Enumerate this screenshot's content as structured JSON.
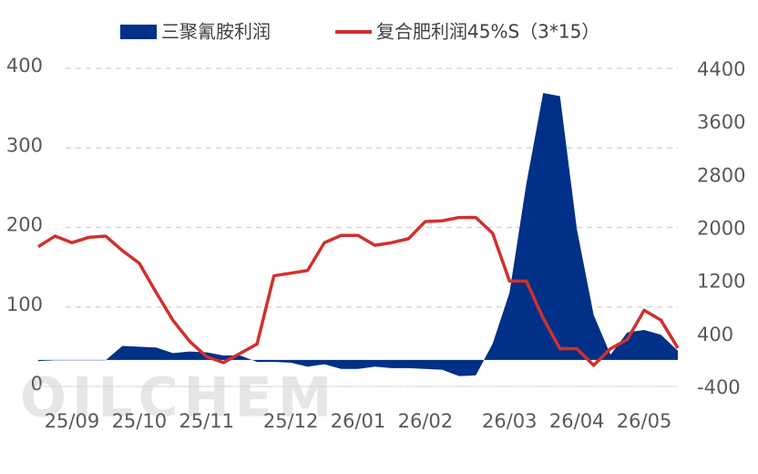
{
  "chart_data": {
    "type": "area-line",
    "watermark": "OILCHEM",
    "categories": [
      null,
      null,
      "25/09",
      null,
      null,
      null,
      "25/10",
      null,
      null,
      null,
      "25/11",
      null,
      null,
      null,
      null,
      "25/12",
      null,
      null,
      null,
      "26/01",
      null,
      null,
      null,
      "26/02",
      null,
      null,
      null,
      null,
      "26/03",
      null,
      null,
      null,
      "26/04",
      null,
      null,
      null,
      "26/05",
      null,
      null
    ],
    "series": [
      {
        "name": "三聚氰胺利润",
        "color": "#003087",
        "kind": "area",
        "values": [
          32,
          33,
          33,
          33,
          33,
          51,
          50,
          49,
          42,
          44,
          43,
          39,
          39,
          31,
          31,
          30,
          25,
          28,
          22,
          22,
          25,
          23,
          23,
          22,
          21,
          13,
          14,
          54,
          118,
          255,
          369,
          365,
          198,
          90,
          40,
          68,
          71,
          65,
          45
        ]
      },
      {
        "name": "复合肥利润45%S（3*15）",
        "color": "#d0312d",
        "kind": "line",
        "axis": "y2",
        "values": [
          1710,
          1870,
          1770,
          1850,
          1870,
          1650,
          1460,
          1020,
          600,
          280,
          50,
          -40,
          100,
          240,
          1270,
          1310,
          1350,
          1770,
          1880,
          1880,
          1730,
          1770,
          1830,
          2090,
          2100,
          2150,
          2150,
          1910,
          1190,
          1190,
          630,
          170,
          170,
          -80,
          170,
          310,
          750,
          600,
          180
        ]
      }
    ],
    "ylim": [
      0,
      400
    ],
    "yticks": [
      0,
      100,
      200,
      300,
      400
    ],
    "y2lim": [
      -400,
      4400
    ],
    "y2ticks": [
      -400,
      400,
      1200,
      2000,
      2800,
      3600,
      4400
    ],
    "grid": true,
    "legend": "top"
  }
}
